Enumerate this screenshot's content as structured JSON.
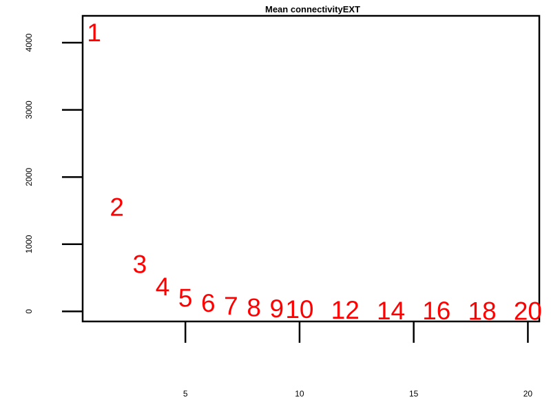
{
  "chart_data": {
    "type": "scatter",
    "title": "Mean connectivityEXT",
    "xlabel": "",
    "ylabel": "",
    "marker_style": "text labels",
    "label_color": "#ff0000",
    "xlim": [
      0.5,
      20.5
    ],
    "ylim": [
      -150,
      4400
    ],
    "xticks": [
      5,
      10,
      15,
      20
    ],
    "xtick_labels": [
      "5",
      "10",
      "15",
      "20"
    ],
    "yticks": [
      0,
      1000,
      2000,
      3000,
      4000
    ],
    "ytick_labels": [
      "0",
      "1000",
      "2000",
      "3000",
      "4000"
    ],
    "grid": false,
    "points": [
      {
        "x": 1,
        "y": 4150,
        "label": "1"
      },
      {
        "x": 2,
        "y": 1550,
        "label": "2"
      },
      {
        "x": 3,
        "y": 700,
        "label": "3"
      },
      {
        "x": 4,
        "y": 370,
        "label": "4"
      },
      {
        "x": 5,
        "y": 200,
        "label": "5"
      },
      {
        "x": 6,
        "y": 120,
        "label": "6"
      },
      {
        "x": 7,
        "y": 80,
        "label": "7"
      },
      {
        "x": 8,
        "y": 55,
        "label": "8"
      },
      {
        "x": 9,
        "y": 40,
        "label": "9"
      },
      {
        "x": 10,
        "y": 30,
        "label": "10"
      },
      {
        "x": 12,
        "y": 20,
        "label": "12"
      },
      {
        "x": 14,
        "y": 10,
        "label": "14"
      },
      {
        "x": 16,
        "y": 10,
        "label": "16"
      },
      {
        "x": 18,
        "y": 5,
        "label": "18"
      },
      {
        "x": 20,
        "y": 5,
        "label": "20"
      }
    ]
  }
}
